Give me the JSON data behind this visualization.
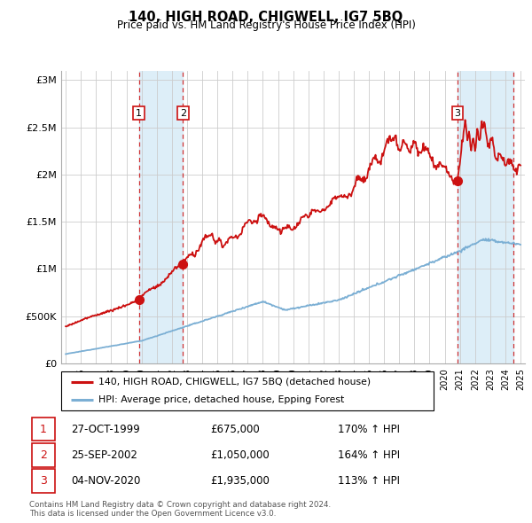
{
  "title": "140, HIGH ROAD, CHIGWELL, IG7 5BQ",
  "subtitle": "Price paid vs. HM Land Registry's House Price Index (HPI)",
  "legend_line1": "140, HIGH ROAD, CHIGWELL, IG7 5BQ (detached house)",
  "legend_line2": "HPI: Average price, detached house, Epping Forest",
  "footer1": "Contains HM Land Registry data © Crown copyright and database right 2024.",
  "footer2": "This data is licensed under the Open Government Licence v3.0.",
  "transactions": [
    {
      "num": 1,
      "date": "27-OCT-1999",
      "price": "£675,000",
      "hpi": "170% ↑ HPI",
      "year": 1999.82
    },
    {
      "num": 2,
      "date": "25-SEP-2002",
      "price": "£1,050,000",
      "hpi": "164% ↑ HPI",
      "year": 2002.73
    },
    {
      "num": 3,
      "date": "04-NOV-2020",
      "price": "£1,935,000",
      "hpi": "113% ↑ HPI",
      "year": 2020.84
    }
  ],
  "transaction_values": [
    675000,
    1050000,
    1935000
  ],
  "shading_ranges": [
    [
      1999.82,
      2002.73
    ],
    [
      2020.84,
      2024.5
    ]
  ],
  "hpi_color": "#7bafd4",
  "price_color": "#cc1111",
  "shade_color": "#ddeef8",
  "background_color": "#ffffff",
  "grid_color": "#cccccc",
  "xlim": [
    1994.7,
    2025.3
  ],
  "ylim": [
    0,
    3100000
  ],
  "yticks": [
    0,
    500000,
    1000000,
    1500000,
    2000000,
    2500000,
    3000000
  ],
  "ylabels": [
    "£0",
    "£500K",
    "£1M",
    "£1.5M",
    "£2M",
    "£2.5M",
    "£3M"
  ]
}
